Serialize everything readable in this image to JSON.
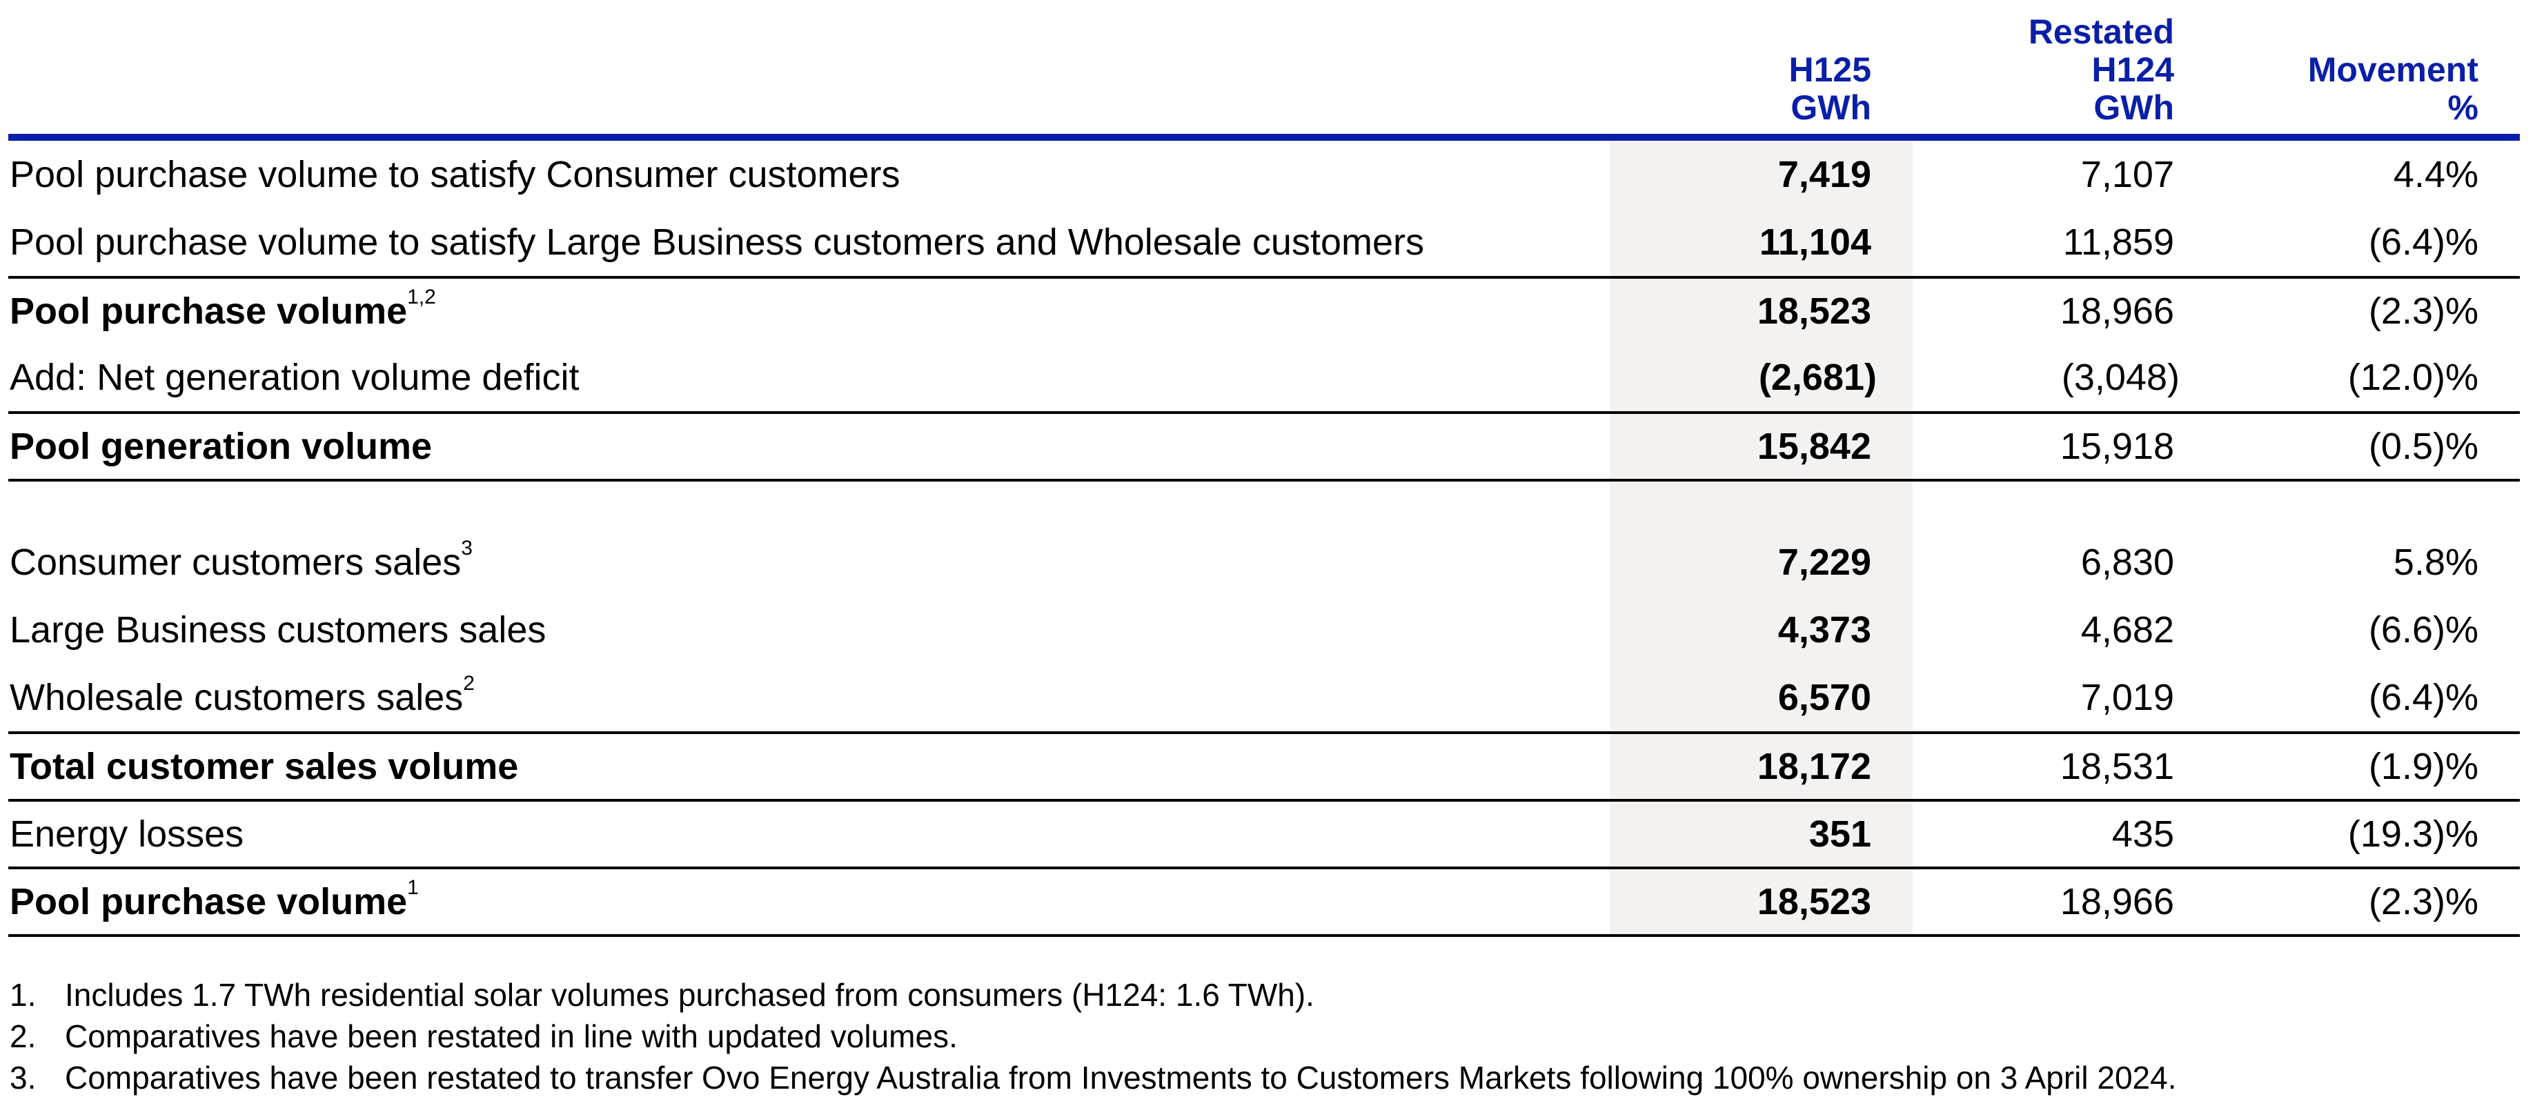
{
  "header": {
    "col1": [
      "H125",
      "GWh"
    ],
    "col2": [
      "Restated",
      "H124",
      "GWh"
    ],
    "col3": [
      "Movement",
      "%"
    ]
  },
  "rows": [
    {
      "label": "Pool purchase volume to satisfy Consumer customers",
      "sup": "",
      "h125": "7,419",
      "h124": "7,107",
      "movement": "4.4%"
    },
    {
      "label": "Pool purchase volume to satisfy Large Business customers and Wholesale customers",
      "sup": "",
      "h125": "11,104",
      "h124": "11,859",
      "movement": "(6.4)%"
    },
    {
      "label": "Pool purchase volume",
      "sup": "1,2",
      "h125": "18,523",
      "h124": "18,966",
      "movement": "(2.3)%"
    },
    {
      "label": "Add: Net generation volume deficit",
      "sup": "",
      "h125": "(2,681)",
      "h124": "(3,048)",
      "movement": "(12.0)%"
    },
    {
      "label": "Pool generation volume",
      "sup": "",
      "h125": "15,842",
      "h124": "15,918",
      "movement": "(0.5)%"
    },
    {
      "label": "Consumer customers sales",
      "sup": "3",
      "h125": "7,229",
      "h124": "6,830",
      "movement": "5.8%"
    },
    {
      "label": "Large Business customers sales",
      "sup": "",
      "h125": "4,373",
      "h124": "4,682",
      "movement": "(6.6)%"
    },
    {
      "label": "Wholesale customers sales",
      "sup": "2",
      "h125": "6,570",
      "h124": "7,019",
      "movement": "(6.4)%"
    },
    {
      "label": "Total customer sales volume",
      "sup": "",
      "h125": "18,172",
      "h124": "18,531",
      "movement": "(1.9)%"
    },
    {
      "label": "Energy losses",
      "sup": "",
      "h125": "351",
      "h124": "435",
      "movement": "(19.3)%"
    },
    {
      "label": "Pool purchase volume",
      "sup": "1",
      "h125": "18,523",
      "h124": "18,966",
      "movement": "(2.3)%"
    }
  ],
  "footnotes": [
    {
      "n": "1.",
      "text": "Includes 1.7 TWh residential solar volumes purchased from consumers (H124: 1.6 TWh)."
    },
    {
      "n": "2.",
      "text": "Comparatives have been restated in line with updated volumes."
    },
    {
      "n": "3.",
      "text": "Comparatives have been restated to transfer Ovo Energy Australia from Investments to Customers Markets following 100% ownership on 3 April 2024."
    }
  ],
  "colors": {
    "accent": "#0a1fa8",
    "shade": "#f3f2f0"
  }
}
